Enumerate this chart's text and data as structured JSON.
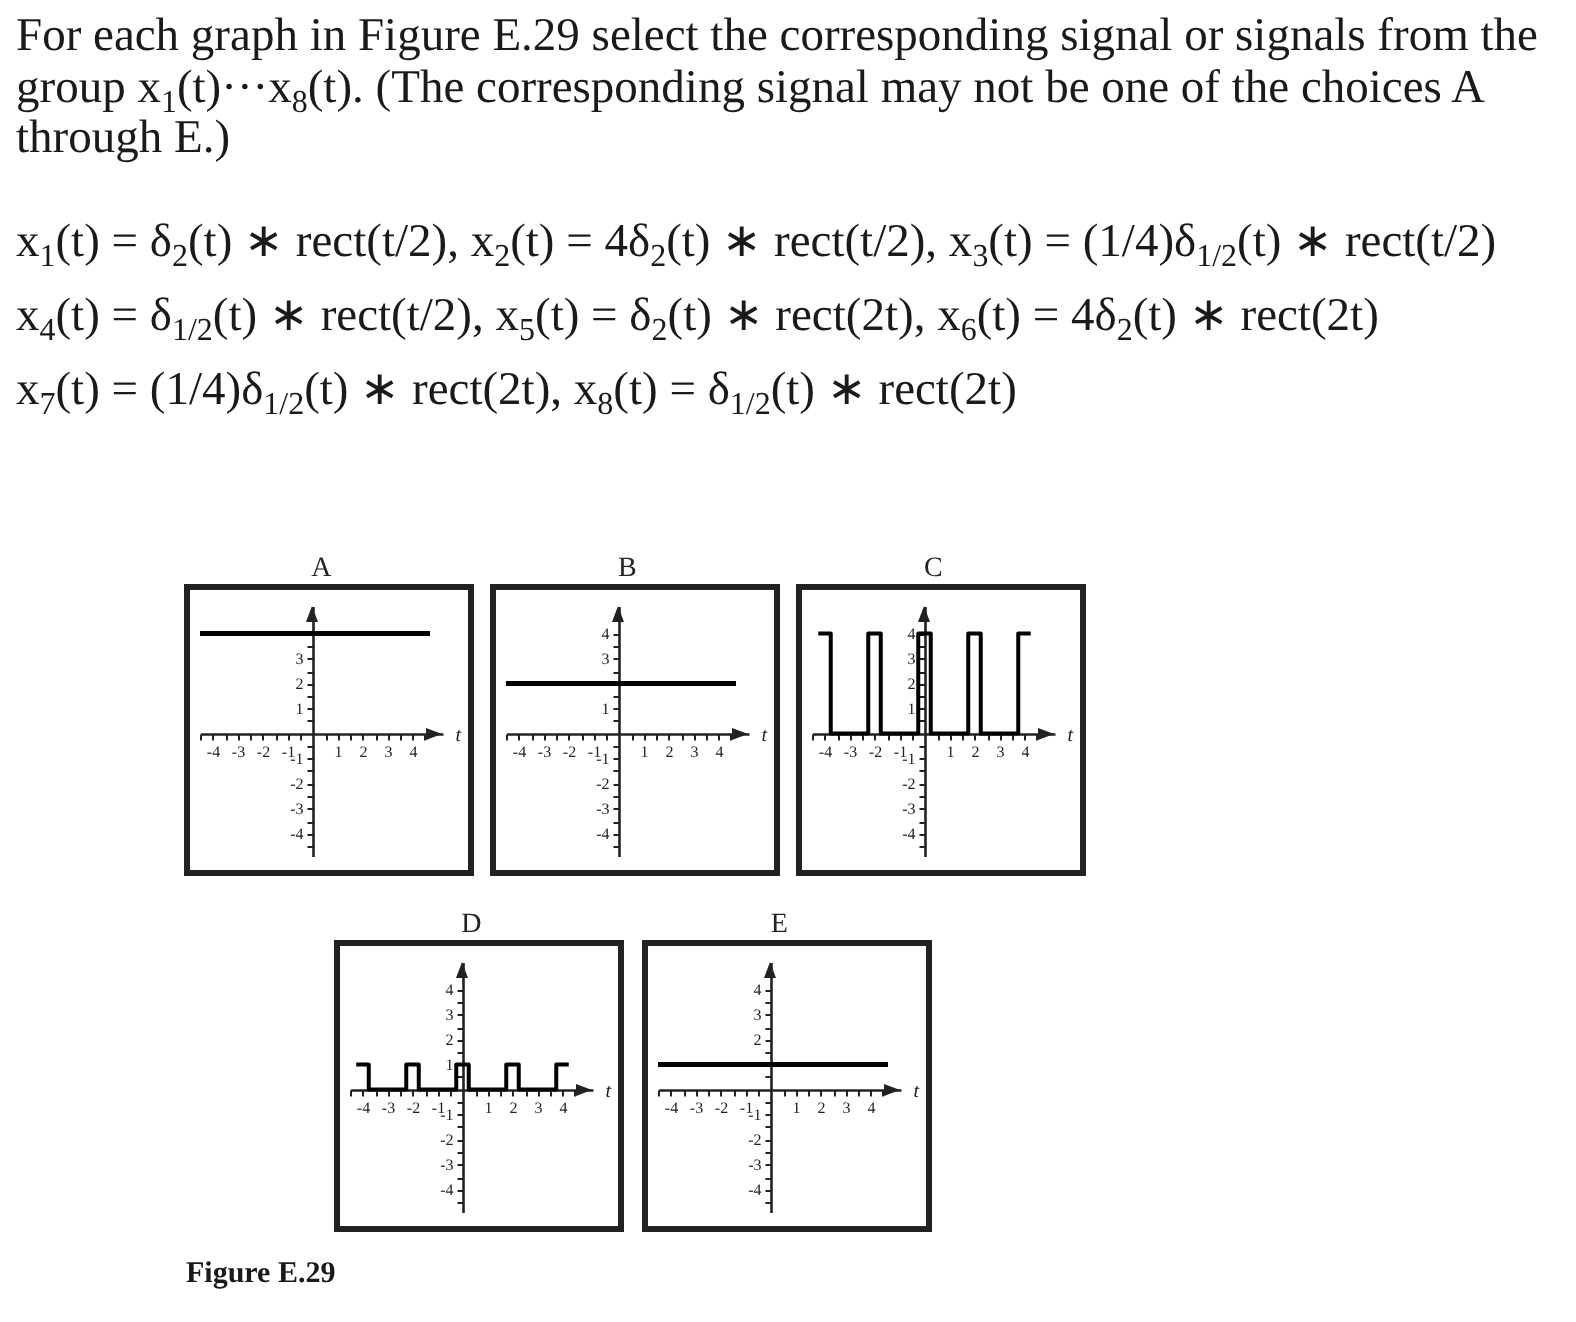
{
  "chart_data": [
    {
      "type": "line",
      "title": "A",
      "xlabel": "t",
      "x": [
        -4.5,
        4.7
      ],
      "values": [
        4,
        4
      ],
      "color": "#000000",
      "xlim": [
        -4.5,
        5.2
      ],
      "ylim": [
        -4.9,
        5.1
      ],
      "xticks": [
        {
          "value": -4.5,
          "label": null
        },
        -4,
        {
          "value": -3.5,
          "label": null
        },
        -3,
        {
          "value": -2.5,
          "label": null
        },
        -2,
        {
          "value": -1.5,
          "label": null
        },
        -1,
        {
          "value": -0.5,
          "label": null
        },
        {
          "value": 0.5,
          "label": null
        },
        1,
        {
          "value": 1.5,
          "label": null
        },
        2,
        {
          "value": 2.5,
          "label": null
        },
        3,
        {
          "value": 3.5,
          "label": null
        },
        4,
        {
          "value": 4.5,
          "label": null
        }
      ],
      "yticks": [
        {
          "value": -4.5,
          "label": null
        },
        -4,
        {
          "value": -3.5,
          "label": null
        },
        -3,
        {
          "value": -2.5,
          "label": null
        },
        -2,
        {
          "value": -1.5,
          "label": null
        },
        -1,
        {
          "value": -0.5,
          "label": null
        },
        {
          "value": 0.5,
          "label": null
        },
        1,
        {
          "value": 1.5,
          "label": null
        },
        2,
        {
          "value": 2.5,
          "label": null
        },
        3,
        {
          "value": 3.5,
          "label": null
        },
        {
          "value": 4,
          "label": null
        },
        {
          "value": 4.5,
          "label": null
        }
      ],
      "annotations": [
        "For each graph in Figure E.29 select the corresponding signal or signals from the group x$_{1}$(t)···x$_{8}$(t). (The corresponding signal may not be one of the choices A through E.)",
        "x$_{1}$(t) = δ$_{2}$(t) ∗ rect(t/2), x$_{2}$(t) = 4δ$_{2}$(t) ∗ rect(t/2), x$_{3}$(t) = (1/4)δ$_{1/2}$(t) ∗ rect(t/2)",
        "x$_{4}$(t) = δ$_{1/2}$(t) ∗ rect(t/2), x$_{5}$(t) = δ$_{2}$(t) ∗ rect(2t), x$_{6}$(t) = 4δ$_{2}$(t) ∗ rect(2t)",
        "x$_{7}$(t) = (1/4)δ$_{1/2}$(t) ∗ rect(2t), x$_{8}$(t) = δ$_{1/2}$(t) ∗ rect(2t)"
      ]
    },
    {
      "type": "line",
      "title": "B",
      "xlabel": "t",
      "x": [
        -4.5,
        4.7
      ],
      "values": [
        2,
        2
      ],
      "color": "#000000",
      "xlim": [
        -4.5,
        5.2
      ],
      "ylim": [
        -4.9,
        5.1
      ],
      "xticks": [
        {
          "value": -4.5,
          "label": null
        },
        -4,
        {
          "value": -3.5,
          "label": null
        },
        -3,
        {
          "value": -2.5,
          "label": null
        },
        -2,
        {
          "value": -1.5,
          "label": null
        },
        -1,
        {
          "value": -0.5,
          "label": null
        },
        {
          "value": 0.5,
          "label": null
        },
        1,
        {
          "value": 1.5,
          "label": null
        },
        2,
        {
          "value": 2.5,
          "label": null
        },
        3,
        {
          "value": 3.5,
          "label": null
        },
        4,
        {
          "value": 4.5,
          "label": null
        }
      ],
      "yticks": [
        {
          "value": -4.5,
          "label": null
        },
        -4,
        {
          "value": -3.5,
          "label": null
        },
        -3,
        {
          "value": -2.5,
          "label": null
        },
        -2,
        {
          "value": -1.5,
          "label": null
        },
        -1,
        {
          "value": -0.5,
          "label": null
        },
        {
          "value": 0.5,
          "label": null
        },
        1,
        {
          "value": 1.5,
          "label": null
        },
        {
          "value": 2,
          "label": null
        },
        {
          "value": 2.5,
          "label": null
        },
        3,
        {
          "value": 3.5,
          "label": null
        },
        4,
        {
          "value": 4.5,
          "label": null
        }
      ]
    },
    {
      "type": "step",
      "title": "C",
      "xlabel": "t",
      "x": [
        -4.25,
        -3.75,
        -2.25,
        -1.75,
        -0.25,
        0.25,
        1.75,
        2.25,
        3.75,
        4.25
      ],
      "values": [
        4,
        0,
        4,
        0,
        4,
        0,
        4,
        0,
        4,
        4
      ],
      "color": "#000000",
      "xlim": [
        -4.5,
        5.2
      ],
      "ylim": [
        -4.9,
        5.1
      ],
      "xticks": [
        {
          "value": -4.5,
          "label": null
        },
        -4,
        {
          "value": -3.5,
          "label": null
        },
        -3,
        {
          "value": -2.5,
          "label": null
        },
        -2,
        {
          "value": -1.5,
          "label": null
        },
        -1,
        {
          "value": -0.5,
          "label": null
        },
        {
          "value": 0.5,
          "label": null
        },
        1,
        {
          "value": 1.5,
          "label": null
        },
        2,
        {
          "value": 2.5,
          "label": null
        },
        3,
        {
          "value": 3.5,
          "label": null
        },
        4,
        {
          "value": 4.5,
          "label": null
        }
      ],
      "yticks": [
        {
          "value": -4.5,
          "label": null
        },
        -4,
        {
          "value": -3.5,
          "label": null
        },
        -3,
        {
          "value": -2.5,
          "label": null
        },
        -2,
        {
          "value": -1.5,
          "label": null
        },
        -1,
        {
          "value": -0.5,
          "label": null
        },
        {
          "value": 0.5,
          "label": null
        },
        1,
        {
          "value": 1.5,
          "label": null
        },
        2,
        {
          "value": 2.5,
          "label": null
        },
        3,
        {
          "value": 3.5,
          "label": null
        },
        4,
        {
          "value": 4.5,
          "label": null
        }
      ]
    },
    {
      "type": "step",
      "title": "D",
      "xlabel": "t",
      "x": [
        -4.25,
        -3.75,
        -2.25,
        -1.75,
        -0.25,
        0.25,
        1.75,
        2.25,
        3.75,
        4.25
      ],
      "values": [
        1,
        0,
        1,
        0,
        1,
        0,
        1,
        0,
        1,
        1
      ],
      "color": "#000000",
      "xlim": [
        -4.5,
        5.2
      ],
      "ylim": [
        -4.9,
        5.1
      ],
      "xticks": [
        {
          "value": -4.5,
          "label": null
        },
        -4,
        {
          "value": -3.5,
          "label": null
        },
        -3,
        {
          "value": -2.5,
          "label": null
        },
        -2,
        {
          "value": -1.5,
          "label": null
        },
        -1,
        {
          "value": -0.5,
          "label": null
        },
        {
          "value": 0.5,
          "label": null
        },
        1,
        {
          "value": 1.5,
          "label": null
        },
        2,
        {
          "value": 2.5,
          "label": null
        },
        3,
        {
          "value": 3.5,
          "label": null
        },
        4,
        {
          "value": 4.5,
          "label": null
        }
      ],
      "yticks": [
        {
          "value": -4.5,
          "label": null
        },
        -4,
        {
          "value": -3.5,
          "label": null
        },
        -3,
        {
          "value": -2.5,
          "label": null
        },
        -2,
        {
          "value": -1.5,
          "label": null
        },
        -1,
        {
          "value": -0.5,
          "label": null
        },
        {
          "value": 0.5,
          "label": null
        },
        1,
        {
          "value": 1.5,
          "label": null
        },
        2,
        {
          "value": 2.5,
          "label": null
        },
        3,
        {
          "value": 3.5,
          "label": null
        },
        4,
        {
          "value": 4.5,
          "label": null
        }
      ],
      "annotations": [
        "Figure E.29"
      ]
    },
    {
      "type": "line",
      "title": "E",
      "xlabel": "t",
      "x": [
        -4.5,
        4.7
      ],
      "values": [
        1,
        1
      ],
      "color": "#000000",
      "xlim": [
        -4.5,
        5.2
      ],
      "ylim": [
        -4.9,
        5.1
      ],
      "xticks": [
        {
          "value": -4.5,
          "label": null
        },
        -4,
        {
          "value": -3.5,
          "label": null
        },
        -3,
        {
          "value": -2.5,
          "label": null
        },
        -2,
        {
          "value": -1.5,
          "label": null
        },
        -1,
        {
          "value": -0.5,
          "label": null
        },
        {
          "value": 0.5,
          "label": null
        },
        1,
        {
          "value": 1.5,
          "label": null
        },
        2,
        {
          "value": 2.5,
          "label": null
        },
        3,
        {
          "value": 3.5,
          "label": null
        },
        4,
        {
          "value": 4.5,
          "label": null
        }
      ],
      "yticks": [
        {
          "value": -4.5,
          "label": null
        },
        -4,
        {
          "value": -3.5,
          "label": null
        },
        -3,
        {
          "value": -2.5,
          "label": null
        },
        -2,
        {
          "value": -1.5,
          "label": null
        },
        -1,
        {
          "value": -0.5,
          "label": null
        },
        {
          "value": 0.5,
          "label": null
        },
        {
          "value": 1,
          "label": null
        },
        {
          "value": 1.5,
          "label": null
        },
        2,
        {
          "value": 2.5,
          "label": null
        },
        3,
        {
          "value": 3.5,
          "label": null
        },
        4,
        {
          "value": 4.5,
          "label": null
        }
      ]
    }
  ]
}
